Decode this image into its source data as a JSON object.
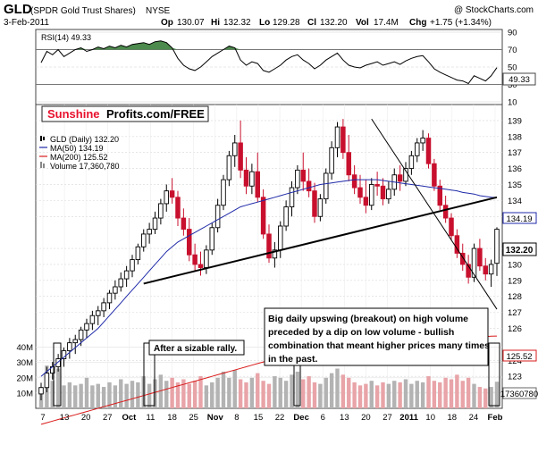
{
  "header": {
    "symbol": "GLD",
    "name": "(SPDR Gold Trust Shares)",
    "exchange": "NYSE",
    "watermark": "@ StockCharts.com",
    "date": "3-Feb-2011",
    "quote": {
      "open_label": "Op",
      "open": "130.07",
      "high_label": "Hi",
      "high": "132.32",
      "low_label": "Lo",
      "low": "129.28",
      "close_label": "Cl",
      "close": "132.20",
      "volume_label": "Vol",
      "volume": "17.4M",
      "change_label": "Chg",
      "change": "+1.75 (+1.34%)"
    }
  },
  "brand": {
    "part1": "Sunshine",
    "part2": "Profits.com/FREE",
    "color1": "#e8112d",
    "color2": "#000000"
  },
  "rsi_panel": {
    "label": "RSI(14) 49.33",
    "value_badge": "49.33",
    "y_ticks": [
      "90",
      "70",
      "50",
      "30",
      "10"
    ]
  },
  "price_panel": {
    "legend": [
      {
        "text": "GLD (Daily) 132.20",
        "color": "#000000",
        "key": "candle"
      },
      {
        "text": "MA(50) 134.19",
        "color": "#1f2aa8",
        "key": "line"
      },
      {
        "text": "MA(200) 125.52",
        "color": "#d91b1b",
        "key": "line"
      },
      {
        "text": "Volume 17,360,780",
        "color": "#888888",
        "key": "bars"
      }
    ],
    "y_ticks": [
      "139",
      "138",
      "137",
      "136",
      "135",
      "134",
      "133",
      "131",
      "130",
      "129",
      "128",
      "127",
      "126",
      "124",
      "123",
      "122"
    ],
    "right_badges": {
      "ma50": "134.19",
      "last": "132.20",
      "ma200": "125.52",
      "volume": "17360780"
    },
    "volume_ticks": [
      "40M",
      "30M",
      "20M",
      "10M"
    ],
    "x_ticks": [
      "7",
      "13",
      "20",
      "27",
      "Oct",
      "11",
      "18",
      "25",
      "Nov",
      "8",
      "15",
      "22",
      "Dec",
      "6",
      "13",
      "20",
      "27",
      "2011",
      "10",
      "18",
      "24",
      "Feb"
    ],
    "x_tick_bold": [
      "Oct",
      "Nov",
      "Dec",
      "2011",
      "Feb"
    ],
    "annotations": {
      "rally": "After a sizable rally.",
      "breakout": "Big daily upswing (breakout) on high volume preceded by a dip on low volume - bullish combination that meant higher prices many times in the past."
    }
  },
  "chart_data": {
    "type": "candlestick",
    "ticker": "GLD",
    "exchange": "NYSE",
    "title": "GLD (SPDR Gold Trust Shares) NYSE",
    "date": "3-Feb-2011",
    "y_range": [
      121,
      140
    ],
    "last": {
      "open": 130.07,
      "high": 132.32,
      "low": 129.28,
      "close": 132.2,
      "volume": 17360780,
      "change": 1.75,
      "change_pct": 1.34
    },
    "ma50_last": 134.19,
    "ma200_last": 125.52,
    "rsi14_last": 49.33,
    "rsi_y_range": [
      10,
      90
    ],
    "x_labels": [
      "7",
      "13",
      "20",
      "27",
      "Oct",
      "11",
      "18",
      "25",
      "Nov",
      "8",
      "15",
      "22",
      "Dec",
      "6",
      "13",
      "20",
      "27",
      "2011",
      "10",
      "18",
      "24",
      "Feb"
    ],
    "candles": [
      [
        121.9,
        122.6,
        121.5,
        122.3
      ],
      [
        122.3,
        123.6,
        122.0,
        123.2
      ],
      [
        123.2,
        123.9,
        122.8,
        123.6
      ],
      [
        123.6,
        124.4,
        123.3,
        124.1
      ],
      [
        124.1,
        124.8,
        123.6,
        124.6
      ],
      [
        124.6,
        125.4,
        124.1,
        125.1
      ],
      [
        125.1,
        125.6,
        124.4,
        125.3
      ],
      [
        125.3,
        126.1,
        124.9,
        125.9
      ],
      [
        125.9,
        126.6,
        125.4,
        126.3
      ],
      [
        126.3,
        127.1,
        125.9,
        126.8
      ],
      [
        126.8,
        127.4,
        126.2,
        127.1
      ],
      [
        127.1,
        127.9,
        126.7,
        127.6
      ],
      [
        127.6,
        128.4,
        127.2,
        128.2
      ],
      [
        128.2,
        129.0,
        127.8,
        128.6
      ],
      [
        128.6,
        129.5,
        128.3,
        129.1
      ],
      [
        129.1,
        129.9,
        128.6,
        129.6
      ],
      [
        129.6,
        130.6,
        129.2,
        130.3
      ],
      [
        130.3,
        131.3,
        130.0,
        131.1
      ],
      [
        131.1,
        132.2,
        130.8,
        131.9
      ],
      [
        131.9,
        132.6,
        131.3,
        132.2
      ],
      [
        132.2,
        133.3,
        131.9,
        132.9
      ],
      [
        132.9,
        134.1,
        132.5,
        133.8
      ],
      [
        133.8,
        135.0,
        133.3,
        134.6
      ],
      [
        134.6,
        135.4,
        133.8,
        134.2
      ],
      [
        134.2,
        134.6,
        132.4,
        132.9
      ],
      [
        132.9,
        133.5,
        131.8,
        132.2
      ],
      [
        132.2,
        132.9,
        130.2,
        130.6
      ],
      [
        130.6,
        131.3,
        129.6,
        130.0
      ],
      [
        130.0,
        130.8,
        129.3,
        129.8
      ],
      [
        129.8,
        131.2,
        129.4,
        130.9
      ],
      [
        130.9,
        132.6,
        130.6,
        132.3
      ],
      [
        132.3,
        134.1,
        132.0,
        133.7
      ],
      [
        133.7,
        135.6,
        133.4,
        135.3
      ],
      [
        135.3,
        137.1,
        134.9,
        136.8
      ],
      [
        136.8,
        138.1,
        136.1,
        137.6
      ],
      [
        137.6,
        139.0,
        135.4,
        135.9
      ],
      [
        135.9,
        136.7,
        134.4,
        134.9
      ],
      [
        134.9,
        136.3,
        134.4,
        135.8
      ],
      [
        135.8,
        137.0,
        133.9,
        134.2
      ],
      [
        134.2,
        134.7,
        131.6,
        131.9
      ],
      [
        131.9,
        132.5,
        130.1,
        130.4
      ],
      [
        130.4,
        131.4,
        129.8,
        130.9
      ],
      [
        130.9,
        132.7,
        130.4,
        132.4
      ],
      [
        132.4,
        134.0,
        132.1,
        133.6
      ],
      [
        133.6,
        135.2,
        133.0,
        134.8
      ],
      [
        134.8,
        136.2,
        134.4,
        135.9
      ],
      [
        135.9,
        137.0,
        134.6,
        135.2
      ],
      [
        135.2,
        136.0,
        134.2,
        134.6
      ],
      [
        134.6,
        135.1,
        132.6,
        133.0
      ],
      [
        133.0,
        134.4,
        132.7,
        134.1
      ],
      [
        134.1,
        136.0,
        133.8,
        135.7
      ],
      [
        135.7,
        137.7,
        135.3,
        137.3
      ],
      [
        137.3,
        138.9,
        136.7,
        138.6
      ],
      [
        138.6,
        139.1,
        136.6,
        137.0
      ],
      [
        137.0,
        138.1,
        135.2,
        135.6
      ],
      [
        135.6,
        136.2,
        134.4,
        134.8
      ],
      [
        134.8,
        135.6,
        133.8,
        134.2
      ],
      [
        134.2,
        135.3,
        133.2,
        133.7
      ],
      [
        133.7,
        135.4,
        133.4,
        135.0
      ],
      [
        135.0,
        135.8,
        134.3,
        134.9
      ],
      [
        134.9,
        135.4,
        133.7,
        134.1
      ],
      [
        134.1,
        135.2,
        133.8,
        134.7
      ],
      [
        134.7,
        136.0,
        134.3,
        135.6
      ],
      [
        135.6,
        136.2,
        134.6,
        135.2
      ],
      [
        135.2,
        136.4,
        134.9,
        136.0
      ],
      [
        136.0,
        137.1,
        135.6,
        136.8
      ],
      [
        136.8,
        137.9,
        136.4,
        137.6
      ],
      [
        137.6,
        138.4,
        137.1,
        137.9
      ],
      [
        137.9,
        138.2,
        136.0,
        136.3
      ],
      [
        136.3,
        136.6,
        134.6,
        134.9
      ],
      [
        134.9,
        135.3,
        133.4,
        133.7
      ],
      [
        133.7,
        134.3,
        132.6,
        132.9
      ],
      [
        132.9,
        133.2,
        131.5,
        131.8
      ],
      [
        131.8,
        132.2,
        130.4,
        130.7
      ],
      [
        130.7,
        131.3,
        129.6,
        130.0
      ],
      [
        130.0,
        130.6,
        128.8,
        129.2
      ],
      [
        129.2,
        131.3,
        128.9,
        131.0
      ],
      [
        131.0,
        131.6,
        129.6,
        129.9
      ],
      [
        129.9,
        130.4,
        129.0,
        129.4
      ],
      [
        129.4,
        130.3,
        128.6,
        130.0
      ],
      [
        130.07,
        132.32,
        129.28,
        132.2
      ]
    ],
    "volume_millions": [
      14,
      28,
      18,
      26,
      15,
      17,
      15,
      16,
      20,
      15,
      16,
      14,
      17,
      15,
      19,
      16,
      18,
      17,
      21,
      16,
      19,
      22,
      18,
      20,
      17,
      19,
      16,
      18,
      21,
      15,
      17,
      20,
      24,
      20,
      25,
      19,
      17,
      20,
      23,
      18,
      16,
      21,
      20,
      18,
      22,
      24,
      19,
      21,
      17,
      16,
      20,
      23,
      26,
      22,
      20,
      17,
      15,
      16,
      18,
      15,
      17,
      16,
      18,
      17,
      19,
      16,
      18,
      17,
      21,
      18,
      17,
      20,
      19,
      22,
      18,
      20,
      16,
      14,
      13,
      14,
      17.4
    ],
    "ma50": [
      123.0,
      123.3,
      123.6,
      123.9,
      124.2,
      124.5,
      124.8,
      125.1,
      125.4,
      125.7,
      126.0,
      126.4,
      126.8,
      127.2,
      127.6,
      128.0,
      128.4,
      128.8,
      129.2,
      129.6,
      130.0,
      130.4,
      130.8,
      131.1,
      131.4,
      131.6,
      131.8,
      132.0,
      132.2,
      132.4,
      132.6,
      132.8,
      133.0,
      133.2,
      133.4,
      133.6,
      133.7,
      133.8,
      133.9,
      134.0,
      134.1,
      134.2,
      134.3,
      134.4,
      134.5,
      134.6,
      134.7,
      134.8,
      134.9,
      135.0,
      135.05,
      135.1,
      135.15,
      135.2,
      135.25,
      135.3,
      135.3,
      135.3,
      135.3,
      135.3,
      135.25,
      135.2,
      135.15,
      135.1,
      135.05,
      135.0,
      134.95,
      134.9,
      134.85,
      134.8,
      134.75,
      134.7,
      134.65,
      134.6,
      134.5,
      134.45,
      134.4,
      134.3,
      134.25,
      134.2,
      134.19
    ],
    "ma200": [
      120.0,
      120.1,
      120.2,
      120.3,
      120.4,
      120.5,
      120.6,
      120.7,
      120.8,
      120.9,
      121.0,
      121.1,
      121.2,
      121.3,
      121.4,
      121.5,
      121.6,
      121.7,
      121.8,
      121.9,
      122.0,
      122.1,
      122.2,
      122.3,
      122.4,
      122.5,
      122.6,
      122.7,
      122.8,
      122.9,
      123.0,
      123.1,
      123.2,
      123.3,
      123.4,
      123.5,
      123.6,
      123.7,
      123.8,
      123.9,
      124.0,
      124.05,
      124.1,
      124.15,
      124.2,
      124.25,
      124.3,
      124.35,
      124.4,
      124.45,
      124.5,
      124.55,
      124.6,
      124.65,
      124.7,
      124.75,
      124.8,
      124.85,
      124.9,
      124.95,
      125.0,
      125.02,
      125.05,
      125.07,
      125.1,
      125.12,
      125.15,
      125.18,
      125.2,
      125.23,
      125.26,
      125.29,
      125.32,
      125.35,
      125.38,
      125.41,
      125.44,
      125.47,
      125.49,
      125.51,
      125.52
    ],
    "rsi14": [
      55,
      68,
      64,
      70,
      62,
      66,
      70,
      72,
      68,
      70,
      73,
      71,
      74,
      72,
      75,
      73,
      76,
      77,
      78,
      76,
      79,
      80,
      78,
      72,
      60,
      52,
      48,
      46,
      50,
      56,
      62,
      66,
      70,
      74,
      72,
      58,
      52,
      56,
      54,
      46,
      44,
      48,
      52,
      58,
      62,
      64,
      58,
      54,
      48,
      52,
      58,
      62,
      66,
      58,
      52,
      50,
      49,
      52,
      54,
      56,
      52,
      54,
      56,
      53,
      57,
      60,
      62,
      63,
      56,
      48,
      44,
      41,
      38,
      35,
      34,
      31,
      40,
      37,
      34,
      40,
      49.33
    ],
    "trendlines": [
      {
        "from": {
          "bar": 18,
          "price": 128.8
        },
        "to": {
          "bar": 80,
          "price": 134.2
        }
      },
      {
        "from": {
          "bar": 58,
          "price": 139.1
        },
        "to": {
          "bar": 80,
          "price": 127.2
        }
      }
    ]
  }
}
